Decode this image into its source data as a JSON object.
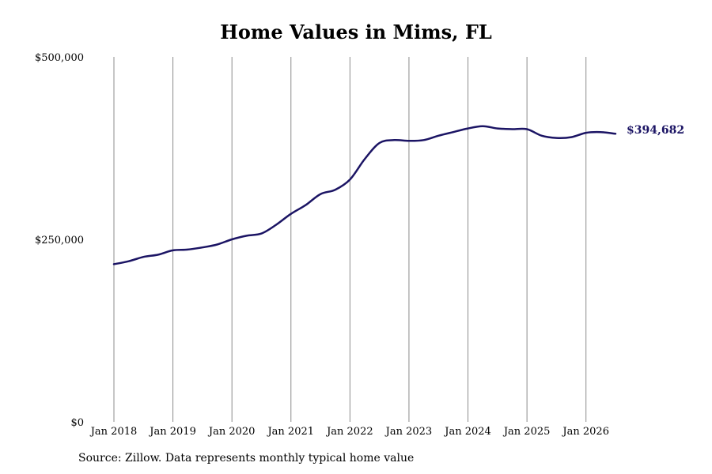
{
  "chart_data": {
    "type": "line",
    "title": "Home Values in Mims, FL",
    "source": "Source: Zillow. Data represents monthly typical home value",
    "xlabel": "",
    "ylabel": "",
    "x_ticks": [
      "Jan 2018",
      "Jan 2019",
      "Jan 2020",
      "Jan 2021",
      "Jan 2022",
      "Jan 2023",
      "Jan 2024",
      "Jan 2025",
      "Jan 2026"
    ],
    "x_range": [
      2018.0,
      2026.5
    ],
    "y_ticks": [
      "$0",
      "$250,000",
      "$500,000"
    ],
    "y_tick_values": [
      0,
      250000,
      500000
    ],
    "ylim": [
      0,
      500000
    ],
    "vertical_grid": true,
    "last_value_label": "$394,682",
    "line_color": "#1b1464",
    "series": [
      {
        "x": [
          2018.0,
          2018.25,
          2018.5,
          2018.75,
          2019.0,
          2019.25,
          2019.5,
          2019.75,
          2020.0,
          2020.25,
          2020.5,
          2020.75,
          2021.0,
          2021.25,
          2021.5,
          2021.75,
          2022.0,
          2022.25,
          2022.5,
          2022.75,
          2023.0,
          2023.25,
          2023.5,
          2023.75,
          2024.0,
          2024.25,
          2024.5,
          2024.75,
          2025.0,
          2025.25,
          2025.5,
          2025.75,
          2026.0,
          2026.25,
          2026.5
        ],
        "values": [
          216000,
          220000,
          226000,
          229000,
          235000,
          236000,
          239000,
          243000,
          250000,
          255000,
          258000,
          270000,
          285000,
          297000,
          312000,
          318000,
          332000,
          360000,
          382000,
          386000,
          385000,
          386000,
          392000,
          397000,
          402000,
          405000,
          402000,
          401000,
          401000,
          392000,
          389000,
          390000,
          396000,
          397000,
          394682
        ]
      }
    ]
  }
}
